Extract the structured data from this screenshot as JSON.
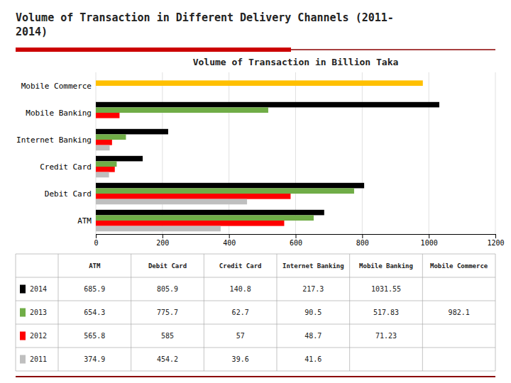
{
  "chart_data": {
    "type": "bar",
    "orientation": "horizontal",
    "title": "Volume of Transaction in Different Delivery Channels (2011-\n2014)",
    "subtitle": "Volume of Transaction in Billion Taka",
    "categories": [
      "ATM",
      "Debit Card",
      "Credit Card",
      "Internet Banking",
      "Mobile Banking",
      "Mobile Commerce"
    ],
    "series": [
      {
        "name": "2014",
        "color": "#000000",
        "values": [
          685.9,
          805.9,
          140.8,
          217.3,
          1031.55,
          null
        ]
      },
      {
        "name": "2013",
        "color": "#70ad47",
        "colors": [
          "#70ad47",
          "#70ad47",
          "#70ad47",
          "#70ad47",
          "#70ad47",
          "#ffc000"
        ],
        "values": [
          654.3,
          775.7,
          62.7,
          90.5,
          517.83,
          982.1
        ]
      },
      {
        "name": "2012",
        "color": "#ff0000",
        "values": [
          565.8,
          585,
          57,
          48.7,
          71.23,
          null
        ]
      },
      {
        "name": "2011",
        "color": "#bfbfbf",
        "values": [
          374.9,
          454.2,
          39.6,
          41.6,
          null,
          null
        ]
      }
    ],
    "xlim": [
      0,
      1200
    ],
    "xticks": [
      0,
      200,
      400,
      600,
      800,
      1000,
      1200
    ],
    "grid": true,
    "legend": "bottom",
    "data_labels": true
  }
}
